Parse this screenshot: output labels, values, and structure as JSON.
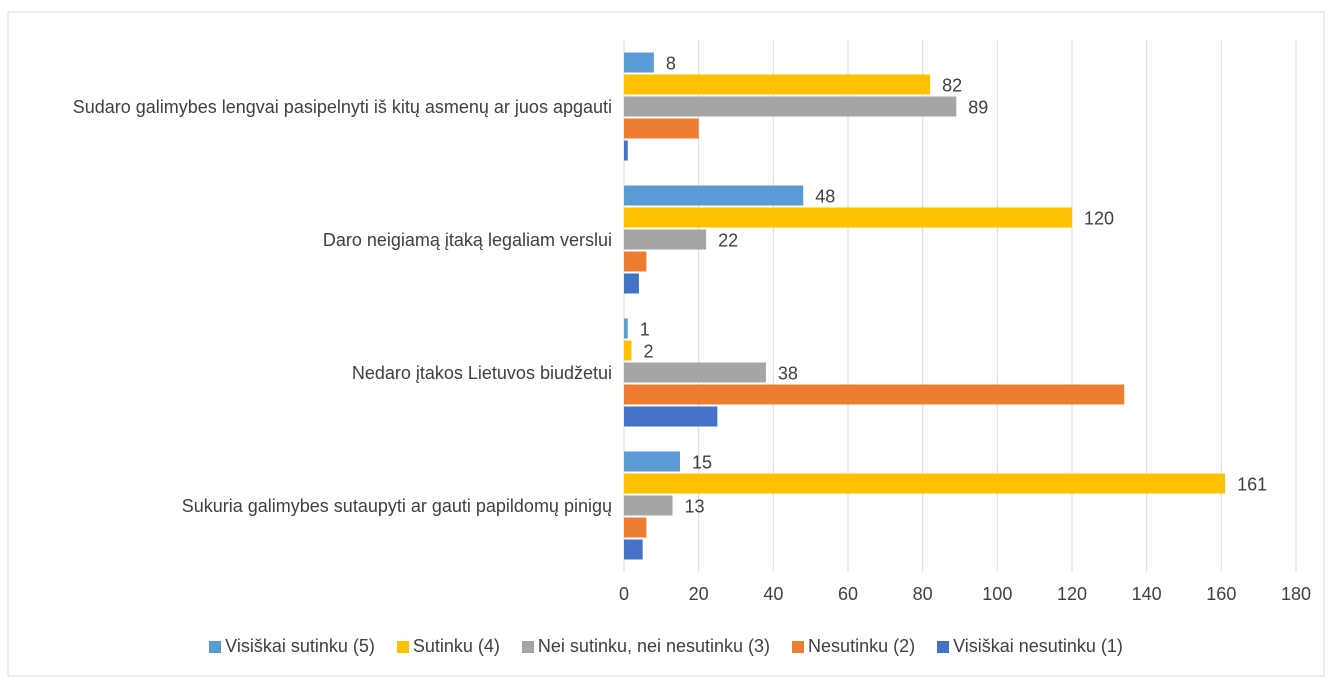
{
  "chart_data": {
    "type": "hbar",
    "categories": [
      "Sudaro galimybes lengvai pasipelnyti iš kitų asmenų ar juos apgauti",
      "Daro neigiamą įtaką legaliam verslui",
      "Nedaro įtakos Lietuvos biudžetui",
      "Sukuria galimybes sutaupyti ar gauti papildomų pinigų"
    ],
    "series": [
      {
        "name": "Visiškai sutinku (5)",
        "color": "#5b9bd5",
        "values": [
          8,
          48,
          1,
          15
        ],
        "data_labels": true
      },
      {
        "name": "Sutinku (4)",
        "color": "#ffc000",
        "values": [
          82,
          120,
          2,
          161
        ],
        "data_labels": true
      },
      {
        "name": "Nei sutinku, nei nesutinku (3)",
        "color": "#a5a5a5",
        "values": [
          89,
          22,
          38,
          13
        ],
        "data_labels": true
      },
      {
        "name": "Nesutinku (2)",
        "color": "#ed7d31",
        "values": [
          20,
          6,
          134,
          6
        ],
        "data_labels": false
      },
      {
        "name": "Visiškai nesutinku (1)",
        "color": "#4472c4",
        "values": [
          1,
          4,
          25,
          5
        ],
        "data_labels": false
      }
    ],
    "xlim": [
      0,
      180
    ],
    "xticks": [
      0,
      20,
      40,
      60,
      80,
      100,
      120,
      140,
      160,
      180
    ],
    "grid": true,
    "legend": "bottom"
  }
}
